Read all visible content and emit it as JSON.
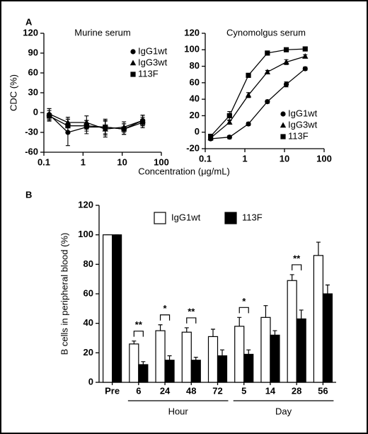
{
  "chart_data": [
    {
      "type": "line",
      "panel": "A",
      "title": "Murine serum",
      "ylabel": "CDC (%)",
      "xlabel": "Concentration (μg/mL)",
      "xscale": "log",
      "xlim": [
        0.1,
        100
      ],
      "xticks": [
        0.1,
        1,
        10,
        100
      ],
      "ylim": [
        -60,
        120
      ],
      "yticks": [
        -60,
        -30,
        0,
        30,
        60,
        90,
        120
      ],
      "legend": "upper right",
      "x": [
        0.137,
        0.41,
        1.23,
        3.7,
        11.1,
        33.3
      ],
      "series": [
        {
          "name": "IgG1wt",
          "marker": "circle",
          "color": "#000000",
          "values": [
            -3,
            -30,
            -22,
            -22,
            -25,
            -12
          ],
          "errors": [
            9,
            20,
            10,
            12,
            8,
            8
          ]
        },
        {
          "name": "IgG3wt",
          "marker": "triangle",
          "color": "#000000",
          "values": [
            -2,
            -15,
            -15,
            -25,
            -22,
            -12
          ],
          "errors": [
            8,
            8,
            10,
            12,
            8,
            8
          ]
        },
        {
          "name": "113F",
          "marker": "square",
          "color": "#000000",
          "values": [
            -5,
            -20,
            -20,
            -22,
            -25,
            -15
          ],
          "errors": [
            8,
            10,
            8,
            10,
            8,
            8
          ]
        }
      ]
    },
    {
      "type": "line",
      "title": "Cynomolgus  serum",
      "xscale": "log",
      "xlim": [
        0.1,
        100
      ],
      "xticks": [
        0.1,
        1,
        10,
        100
      ],
      "ylim": [
        -20,
        120
      ],
      "yticks": [
        -20,
        0,
        20,
        40,
        60,
        80,
        100,
        120
      ],
      "legend": "lower right",
      "x": [
        0.137,
        0.41,
        1.23,
        3.7,
        11.1,
        33.3
      ],
      "series": [
        {
          "name": "IgG1wt",
          "marker": "circle",
          "color": "#000000",
          "values": [
            -8,
            -6,
            10,
            37,
            58,
            77
          ],
          "errors": [
            2,
            2,
            2,
            2,
            3,
            2
          ]
        },
        {
          "name": "IgG3wt",
          "marker": "triangle",
          "color": "#000000",
          "values": [
            -7,
            12,
            45,
            73,
            85,
            92
          ],
          "errors": [
            2,
            2,
            3,
            2,
            3,
            2
          ]
        },
        {
          "name": "113F",
          "marker": "square",
          "color": "#000000",
          "values": [
            -5,
            20,
            69,
            96,
            100,
            101
          ],
          "errors": [
            2,
            5,
            2,
            1,
            1,
            2
          ]
        }
      ]
    },
    {
      "type": "bar",
      "panel": "B",
      "ylabel": "B cells in peripheral blood (%)",
      "ylim": [
        0,
        120
      ],
      "yticks": [
        0,
        20,
        40,
        60,
        80,
        100,
        120
      ],
      "legend": "top",
      "categories": [
        "Pre",
        "6",
        "24",
        "48",
        "72",
        "5",
        "14",
        "28",
        "56"
      ],
      "series": [
        {
          "name": "IgG1wt",
          "color": "#ffffff",
          "values": [
            100,
            26,
            35,
            34,
            31,
            38,
            44,
            69,
            86
          ],
          "errors": [
            0,
            2,
            4,
            3,
            5,
            6,
            8,
            4,
            9
          ]
        },
        {
          "name": "113F",
          "color": "#000000",
          "values": [
            100,
            12,
            15,
            15,
            18,
            19,
            32,
            43,
            60
          ],
          "errors": [
            0,
            2,
            3,
            2,
            4,
            3,
            3,
            6,
            6
          ]
        }
      ],
      "annotations": [
        {
          "category": "6",
          "text": "**"
        },
        {
          "category": "24",
          "text": "*"
        },
        {
          "category": "48",
          "text": "**"
        },
        {
          "category": "5",
          "text": "*"
        },
        {
          "category": "28",
          "text": "**"
        }
      ],
      "groups": [
        {
          "label": "Hour",
          "from": "6",
          "to": "72"
        },
        {
          "label": "Day",
          "from": "5",
          "to": "56"
        }
      ]
    }
  ]
}
